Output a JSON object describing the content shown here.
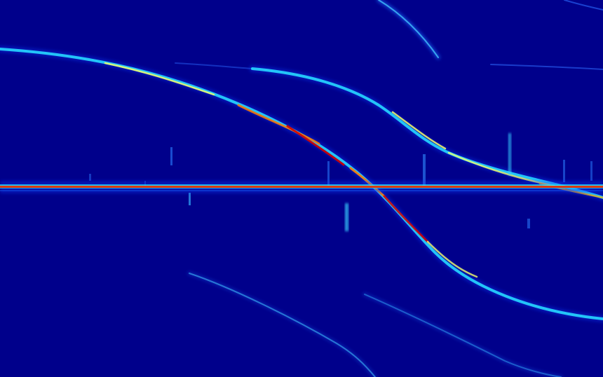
{
  "image": {
    "kind": "spectrogram",
    "colormap": "jet",
    "colors": {
      "background": "#00008b",
      "low": "#0a3cff",
      "mid": "#27d7ff",
      "high_mid": "#f4ff6a",
      "high": "#ff7a00",
      "peak": "#d40000"
    },
    "features": [
      "horizontal-constant-tone",
      "primary-descending-curve",
      "secondary-descending-curve",
      "faint-curves",
      "vertical-impulses"
    ]
  }
}
